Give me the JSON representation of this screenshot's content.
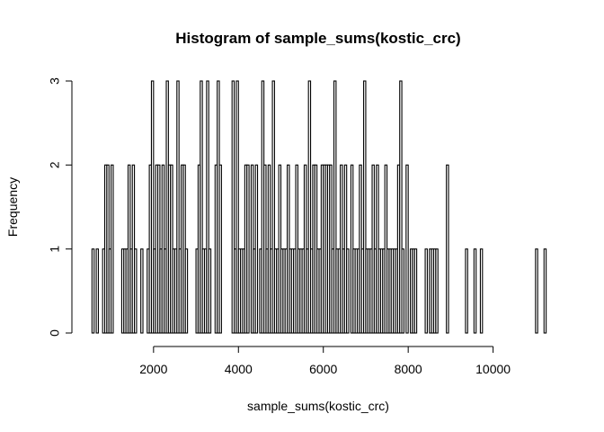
{
  "chart_data": {
    "type": "bar",
    "title": "Histogram of sample_sums(kostic_crc)",
    "xlabel": "sample_sums(kostic_crc)",
    "ylabel": "Frequency",
    "bin_width": 50,
    "xlim": [
      500,
      11300
    ],
    "ylim": [
      0,
      3
    ],
    "xticks": [
      2000,
      4000,
      6000,
      8000,
      10000
    ],
    "yticks": [
      0,
      1,
      2,
      3
    ],
    "grid": false,
    "bins": [
      {
        "x": 550,
        "count": 1
      },
      {
        "x": 650,
        "count": 1
      },
      {
        "x": 800,
        "count": 1
      },
      {
        "x": 850,
        "count": 2
      },
      {
        "x": 900,
        "count": 2
      },
      {
        "x": 950,
        "count": 1
      },
      {
        "x": 1000,
        "count": 2
      },
      {
        "x": 1250,
        "count": 1
      },
      {
        "x": 1300,
        "count": 1
      },
      {
        "x": 1350,
        "count": 1
      },
      {
        "x": 1400,
        "count": 2
      },
      {
        "x": 1450,
        "count": 1
      },
      {
        "x": 1500,
        "count": 2
      },
      {
        "x": 1550,
        "count": 1
      },
      {
        "x": 1700,
        "count": 1
      },
      {
        "x": 1850,
        "count": 1
      },
      {
        "x": 1900,
        "count": 2
      },
      {
        "x": 1950,
        "count": 3
      },
      {
        "x": 2000,
        "count": 1
      },
      {
        "x": 2050,
        "count": 2
      },
      {
        "x": 2100,
        "count": 2
      },
      {
        "x": 2150,
        "count": 1
      },
      {
        "x": 2200,
        "count": 2
      },
      {
        "x": 2250,
        "count": 1
      },
      {
        "x": 2300,
        "count": 3
      },
      {
        "x": 2350,
        "count": 2
      },
      {
        "x": 2400,
        "count": 2
      },
      {
        "x": 2450,
        "count": 1
      },
      {
        "x": 2500,
        "count": 1
      },
      {
        "x": 2550,
        "count": 3
      },
      {
        "x": 2600,
        "count": 1
      },
      {
        "x": 2650,
        "count": 2
      },
      {
        "x": 2700,
        "count": 2
      },
      {
        "x": 2750,
        "count": 1
      },
      {
        "x": 3000,
        "count": 1
      },
      {
        "x": 3050,
        "count": 2
      },
      {
        "x": 3100,
        "count": 3
      },
      {
        "x": 3150,
        "count": 1
      },
      {
        "x": 3200,
        "count": 1
      },
      {
        "x": 3250,
        "count": 3
      },
      {
        "x": 3300,
        "count": 1
      },
      {
        "x": 3450,
        "count": 2
      },
      {
        "x": 3500,
        "count": 3
      },
      {
        "x": 3550,
        "count": 2
      },
      {
        "x": 3850,
        "count": 3
      },
      {
        "x": 3900,
        "count": 1
      },
      {
        "x": 3950,
        "count": 3
      },
      {
        "x": 4000,
        "count": 1
      },
      {
        "x": 4050,
        "count": 1
      },
      {
        "x": 4100,
        "count": 1
      },
      {
        "x": 4150,
        "count": 2
      },
      {
        "x": 4200,
        "count": 2
      },
      {
        "x": 4300,
        "count": 2
      },
      {
        "x": 4350,
        "count": 1
      },
      {
        "x": 4400,
        "count": 2
      },
      {
        "x": 4500,
        "count": 1
      },
      {
        "x": 4550,
        "count": 3
      },
      {
        "x": 4600,
        "count": 2
      },
      {
        "x": 4650,
        "count": 1
      },
      {
        "x": 4700,
        "count": 2
      },
      {
        "x": 4750,
        "count": 1
      },
      {
        "x": 4800,
        "count": 3
      },
      {
        "x": 4850,
        "count": 1
      },
      {
        "x": 4900,
        "count": 1
      },
      {
        "x": 4950,
        "count": 2
      },
      {
        "x": 5000,
        "count": 1
      },
      {
        "x": 5050,
        "count": 1
      },
      {
        "x": 5100,
        "count": 1
      },
      {
        "x": 5150,
        "count": 2
      },
      {
        "x": 5200,
        "count": 1
      },
      {
        "x": 5250,
        "count": 1
      },
      {
        "x": 5300,
        "count": 1
      },
      {
        "x": 5350,
        "count": 2
      },
      {
        "x": 5400,
        "count": 1
      },
      {
        "x": 5450,
        "count": 1
      },
      {
        "x": 5500,
        "count": 1
      },
      {
        "x": 5550,
        "count": 2
      },
      {
        "x": 5600,
        "count": 1
      },
      {
        "x": 5650,
        "count": 3
      },
      {
        "x": 5700,
        "count": 1
      },
      {
        "x": 5750,
        "count": 2
      },
      {
        "x": 5800,
        "count": 2
      },
      {
        "x": 5850,
        "count": 1
      },
      {
        "x": 5900,
        "count": 1
      },
      {
        "x": 5950,
        "count": 2
      },
      {
        "x": 6000,
        "count": 2
      },
      {
        "x": 6050,
        "count": 2
      },
      {
        "x": 6100,
        "count": 2
      },
      {
        "x": 6150,
        "count": 2
      },
      {
        "x": 6200,
        "count": 1
      },
      {
        "x": 6250,
        "count": 3
      },
      {
        "x": 6300,
        "count": 1
      },
      {
        "x": 6350,
        "count": 1
      },
      {
        "x": 6400,
        "count": 2
      },
      {
        "x": 6450,
        "count": 1
      },
      {
        "x": 6500,
        "count": 2
      },
      {
        "x": 6550,
        "count": 1
      },
      {
        "x": 6650,
        "count": 2
      },
      {
        "x": 6700,
        "count": 1
      },
      {
        "x": 6750,
        "count": 1
      },
      {
        "x": 6800,
        "count": 1
      },
      {
        "x": 6850,
        "count": 2
      },
      {
        "x": 6900,
        "count": 1
      },
      {
        "x": 6950,
        "count": 3
      },
      {
        "x": 7000,
        "count": 1
      },
      {
        "x": 7050,
        "count": 1
      },
      {
        "x": 7100,
        "count": 1
      },
      {
        "x": 7150,
        "count": 2
      },
      {
        "x": 7200,
        "count": 1
      },
      {
        "x": 7250,
        "count": 2
      },
      {
        "x": 7300,
        "count": 1
      },
      {
        "x": 7350,
        "count": 1
      },
      {
        "x": 7400,
        "count": 1
      },
      {
        "x": 7450,
        "count": 2
      },
      {
        "x": 7500,
        "count": 1
      },
      {
        "x": 7550,
        "count": 1
      },
      {
        "x": 7600,
        "count": 1
      },
      {
        "x": 7650,
        "count": 1
      },
      {
        "x": 7700,
        "count": 1
      },
      {
        "x": 7750,
        "count": 2
      },
      {
        "x": 7800,
        "count": 3
      },
      {
        "x": 7850,
        "count": 1
      },
      {
        "x": 7950,
        "count": 2
      },
      {
        "x": 8050,
        "count": 1
      },
      {
        "x": 8100,
        "count": 1
      },
      {
        "x": 8150,
        "count": 1
      },
      {
        "x": 8400,
        "count": 1
      },
      {
        "x": 8500,
        "count": 1
      },
      {
        "x": 8550,
        "count": 1
      },
      {
        "x": 8600,
        "count": 1
      },
      {
        "x": 8650,
        "count": 1
      },
      {
        "x": 8900,
        "count": 2
      },
      {
        "x": 9350,
        "count": 1
      },
      {
        "x": 9550,
        "count": 1
      },
      {
        "x": 9700,
        "count": 1
      },
      {
        "x": 11000,
        "count": 1
      },
      {
        "x": 11200,
        "count": 1
      }
    ]
  }
}
